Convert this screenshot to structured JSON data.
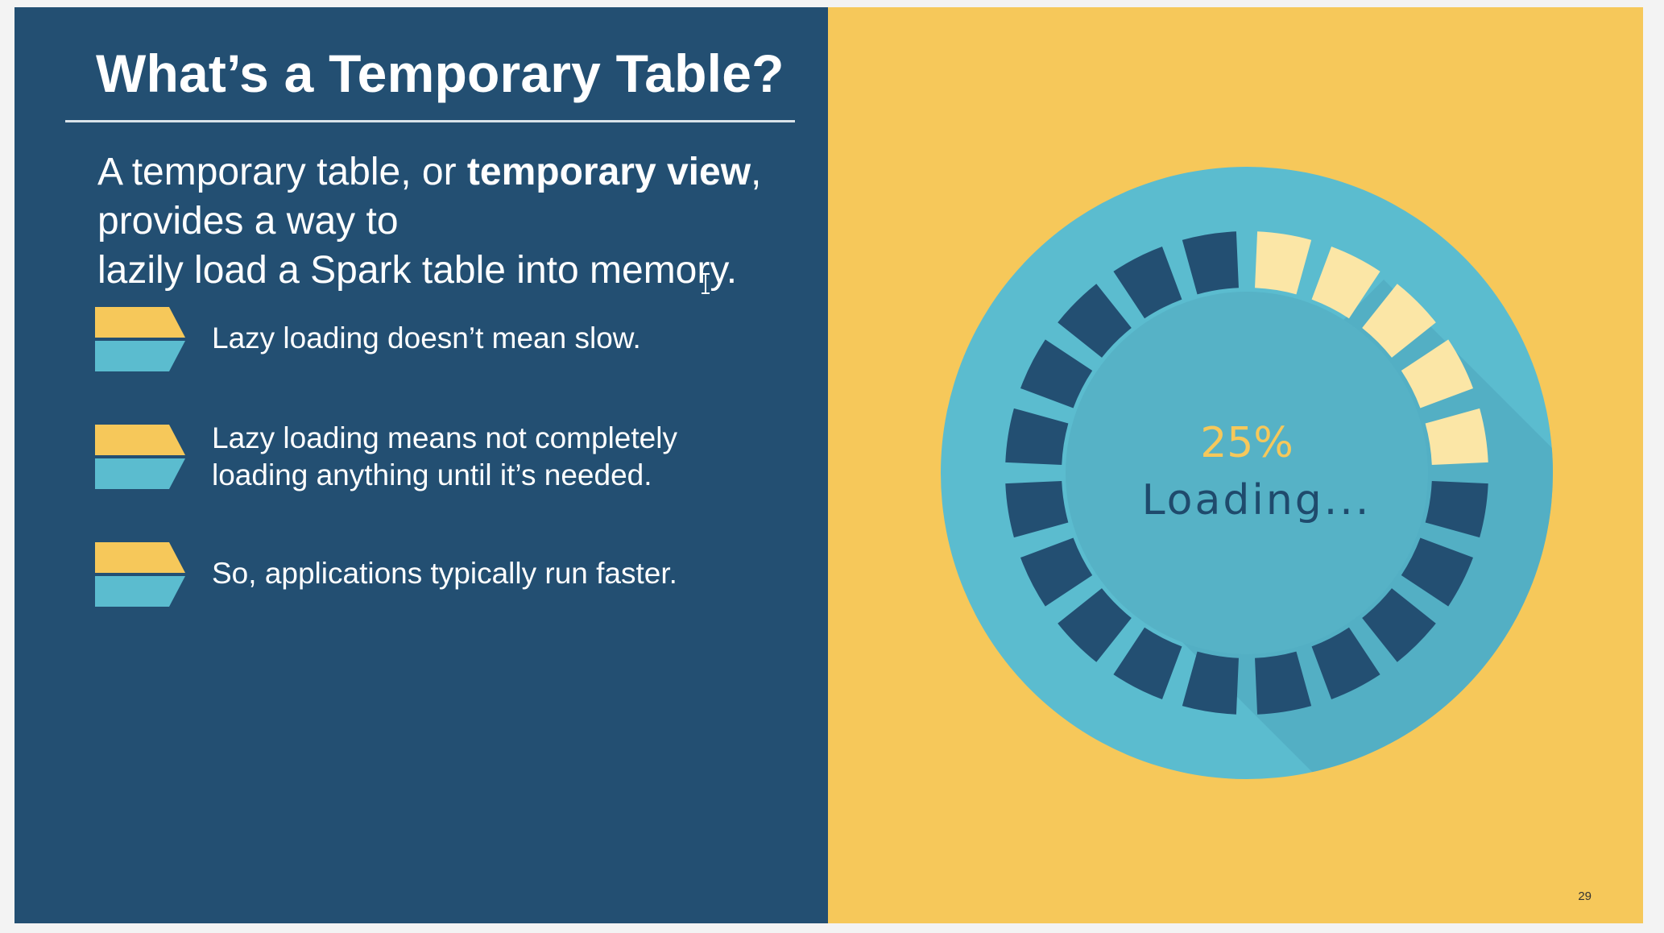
{
  "slide": {
    "title": "What’s a Temporary Table?",
    "intro": {
      "part1": "A temporary table, or ",
      "bold": "temporary view",
      "part2": ",",
      "line2": "provides a way to",
      "line3": "lazily load a Spark table into memory."
    },
    "bullets": [
      {
        "text": "Lazy loading doesn’t mean slow.",
        "icon": "chevron-bullet-icon"
      },
      {
        "line1": "Lazy loading means not completely",
        "line2": "loading anything until it’s needed.",
        "icon": "chevron-bullet-icon"
      },
      {
        "text": "So, applications typically run faster.",
        "icon": "chevron-bullet-icon"
      }
    ],
    "page_number": "29"
  },
  "loader": {
    "percent_label": "25%",
    "status_label": "Loading...",
    "progress": 0.25,
    "segments": 20
  },
  "colors": {
    "left_bg": "#234f72",
    "right_bg": "#f6c85a",
    "accent_yellow": "#f6c85a",
    "accent_blue": "#5bbccf",
    "dark_segment": "#234f72",
    "light_segment": "#fbe6a6"
  }
}
